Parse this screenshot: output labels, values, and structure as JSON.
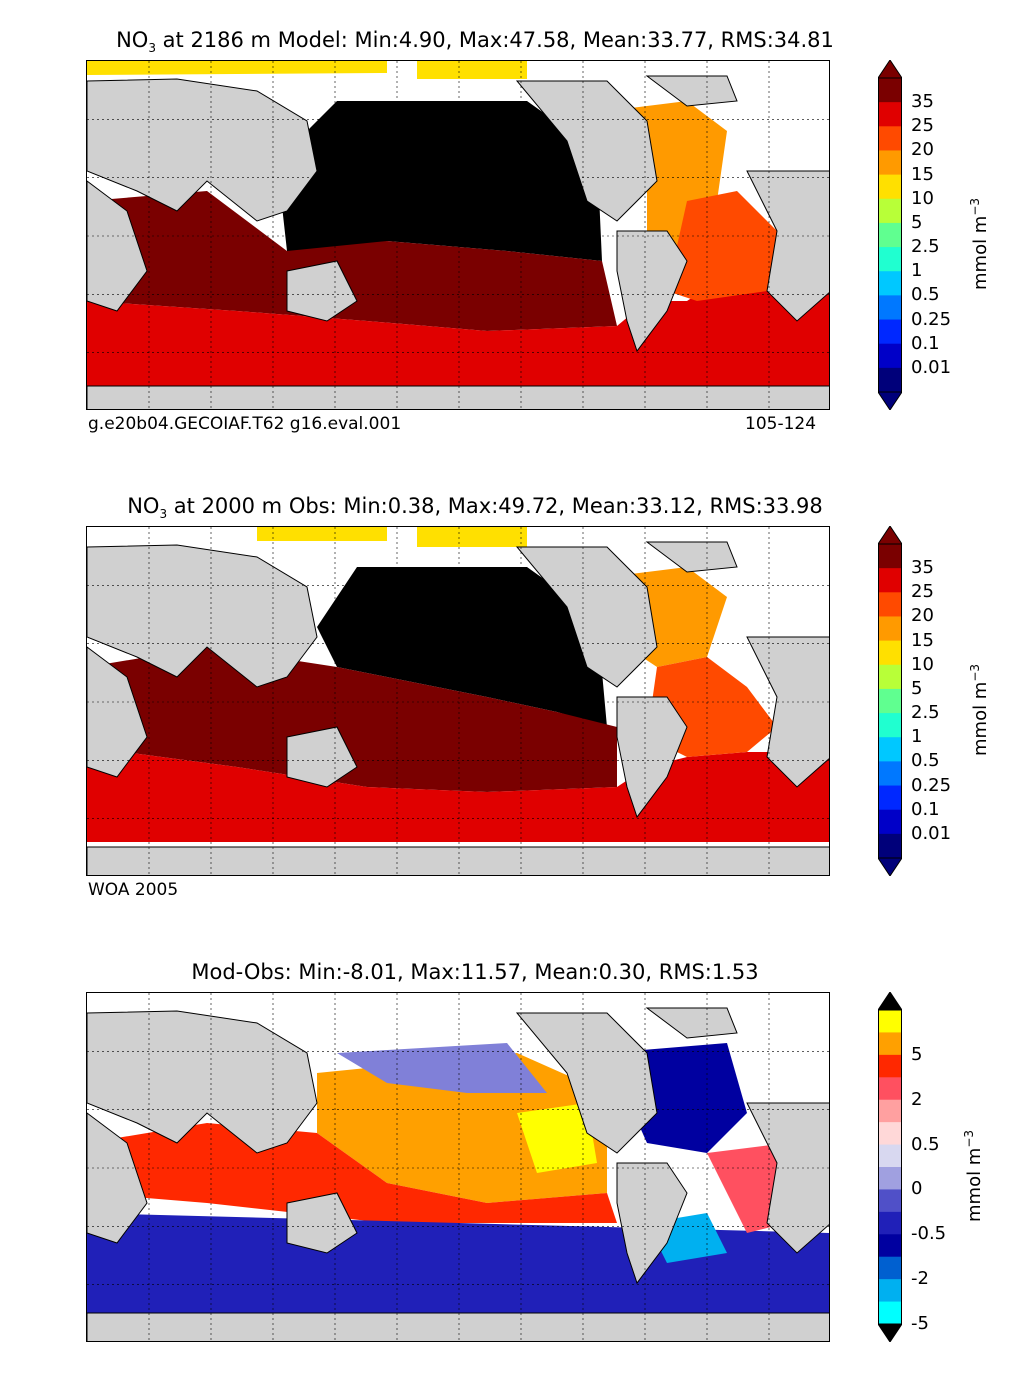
{
  "panels": [
    {
      "title_species": "NO",
      "title_sub": "3",
      "title_rest": " at 2186 m Model: Min:4.90, Max:47.58, Mean:33.77, RMS:34.81",
      "footer_left": "g.e20b04.GECOIAF.T62 g16.eval.001",
      "footer_right": "105-124",
      "colorbar_ticks": [
        "35",
        "25",
        "20",
        "15",
        "10",
        "5",
        "2.5",
        "1",
        "0.5",
        "0.25",
        "0.1",
        "0.01"
      ],
      "colorbar_colors": [
        "#7a0000",
        "#e00000",
        "#ff4a00",
        "#ff9a00",
        "#ffe000",
        "#b8ff38",
        "#60ff90",
        "#20ffd0",
        "#00c8ff",
        "#0078ff",
        "#0028ff",
        "#0000c8",
        "#00007a"
      ],
      "unit": "mmol m",
      "unit_sup": "−3"
    },
    {
      "title_species": "NO",
      "title_sub": "3",
      "title_rest": " at 2000 m Obs: Min:0.38, Max:49.72, Mean:33.12, RMS:33.98",
      "footer_left": "WOA 2005",
      "colorbar_ticks": [
        "35",
        "25",
        "20",
        "15",
        "10",
        "5",
        "2.5",
        "1",
        "0.5",
        "0.25",
        "0.1",
        "0.01"
      ],
      "colorbar_colors": [
        "#7a0000",
        "#e00000",
        "#ff4a00",
        "#ff9a00",
        "#ffe000",
        "#b8ff38",
        "#60ff90",
        "#20ffd0",
        "#00c8ff",
        "#0078ff",
        "#0028ff",
        "#0000c8",
        "#00007a"
      ],
      "unit": "mmol m",
      "unit_sup": "−3"
    },
    {
      "title": "Mod-Obs: Min:-8.01, Max:11.57, Mean:0.30, RMS:1.53",
      "colorbar_ticks": [
        "5",
        "2",
        "0.5",
        "0",
        "-0.5",
        "-2",
        "-5"
      ],
      "colorbar_colors": [
        "#ffff00",
        "#ffa000",
        "#ff2800",
        "#ff5060",
        "#ffa0a0",
        "#ffd8d8",
        "#d8d8f0",
        "#a0a0e0",
        "#5050c8",
        "#2020b8",
        "#0000a0",
        "#0060d0",
        "#00b0f0",
        "#00ffff"
      ],
      "unit": "mmol m",
      "unit_sup": "−3"
    }
  ],
  "map_colors": {
    "land": "#d0d0d0",
    "missing": "#ffffff",
    "deep_pacific": "#000000"
  }
}
